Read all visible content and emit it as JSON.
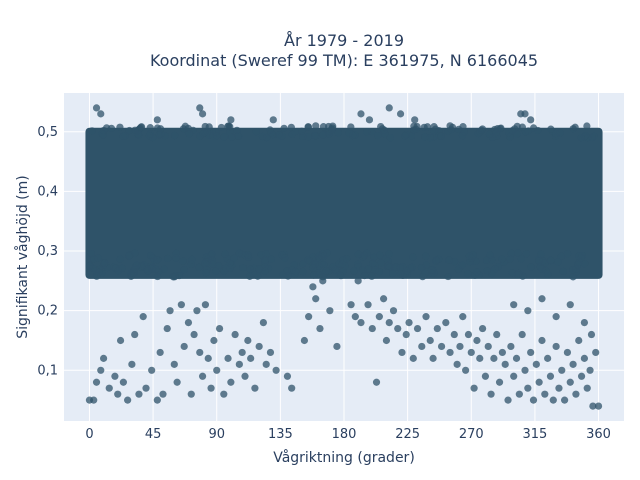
{
  "chart_data": {
    "type": "scatter",
    "title": "År 1979 - 2019",
    "subtitle": "Koordinat (Sweref 99 TM): E 361975, N 6166045",
    "xlabel": "Vågriktning (grader)",
    "ylabel": "Signifikant våghöjd (m)",
    "xlim": [
      -18,
      378
    ],
    "ylim": [
      0.015,
      0.565
    ],
    "x_ticks": [
      0,
      45,
      90,
      135,
      180,
      225,
      270,
      315,
      360
    ],
    "x_tick_labels": [
      "0",
      "45",
      "90",
      "135",
      "180",
      "225",
      "270",
      "315",
      "360"
    ],
    "y_ticks": [
      0.1,
      0.2,
      0.3,
      0.4,
      0.5
    ],
    "y_tick_labels": [
      "0,1",
      "0,2",
      "0,3",
      "0,4",
      "0,5"
    ],
    "grid": true,
    "colors": {
      "marker": "#2f5369",
      "background": "#e5ecf6",
      "grid": "#ffffff"
    },
    "dense_band": {
      "x_range": [
        0,
        360
      ],
      "y_range": [
        0.26,
        0.5
      ]
    },
    "points": [
      [
        0,
        0.05
      ],
      [
        3,
        0.05
      ],
      [
        5,
        0.08
      ],
      [
        8,
        0.1
      ],
      [
        10,
        0.12
      ],
      [
        14,
        0.07
      ],
      [
        18,
        0.09
      ],
      [
        20,
        0.06
      ],
      [
        22,
        0.15
      ],
      [
        24,
        0.08
      ],
      [
        27,
        0.05
      ],
      [
        30,
        0.11
      ],
      [
        32,
        0.16
      ],
      [
        35,
        0.06
      ],
      [
        38,
        0.19
      ],
      [
        40,
        0.07
      ],
      [
        44,
        0.1
      ],
      [
        48,
        0.05
      ],
      [
        50,
        0.13
      ],
      [
        52,
        0.06
      ],
      [
        55,
        0.17
      ],
      [
        57,
        0.2
      ],
      [
        60,
        0.11
      ],
      [
        62,
        0.08
      ],
      [
        65,
        0.21
      ],
      [
        67,
        0.14
      ],
      [
        70,
        0.18
      ],
      [
        72,
        0.06
      ],
      [
        74,
        0.16
      ],
      [
        76,
        0.2
      ],
      [
        78,
        0.13
      ],
      [
        80,
        0.09
      ],
      [
        82,
        0.21
      ],
      [
        84,
        0.12
      ],
      [
        86,
        0.07
      ],
      [
        88,
        0.15
      ],
      [
        90,
        0.1
      ],
      [
        92,
        0.17
      ],
      [
        95,
        0.06
      ],
      [
        98,
        0.12
      ],
      [
        100,
        0.08
      ],
      [
        103,
        0.16
      ],
      [
        106,
        0.11
      ],
      [
        108,
        0.13
      ],
      [
        110,
        0.09
      ],
      [
        112,
        0.15
      ],
      [
        114,
        0.12
      ],
      [
        117,
        0.07
      ],
      [
        120,
        0.14
      ],
      [
        123,
        0.18
      ],
      [
        125,
        0.11
      ],
      [
        128,
        0.13
      ],
      [
        132,
        0.1
      ],
      [
        140,
        0.09
      ],
      [
        143,
        0.07
      ],
      [
        152,
        0.15
      ],
      [
        155,
        0.19
      ],
      [
        158,
        0.24
      ],
      [
        160,
        0.22
      ],
      [
        163,
        0.17
      ],
      [
        165,
        0.25
      ],
      [
        170,
        0.2
      ],
      [
        175,
        0.14
      ],
      [
        185,
        0.21
      ],
      [
        188,
        0.19
      ],
      [
        190,
        0.25
      ],
      [
        192,
        0.18
      ],
      [
        197,
        0.21
      ],
      [
        200,
        0.17
      ],
      [
        203,
        0.08
      ],
      [
        205,
        0.19
      ],
      [
        208,
        0.22
      ],
      [
        210,
        0.15
      ],
      [
        212,
        0.18
      ],
      [
        215,
        0.2
      ],
      [
        218,
        0.17
      ],
      [
        221,
        0.13
      ],
      [
        224,
        0.16
      ],
      [
        226,
        0.18
      ],
      [
        229,
        0.12
      ],
      [
        232,
        0.17
      ],
      [
        235,
        0.14
      ],
      [
        238,
        0.19
      ],
      [
        241,
        0.15
      ],
      [
        243,
        0.12
      ],
      [
        246,
        0.17
      ],
      [
        249,
        0.14
      ],
      [
        252,
        0.18
      ],
      [
        255,
        0.13
      ],
      [
        258,
        0.16
      ],
      [
        260,
        0.11
      ],
      [
        262,
        0.14
      ],
      [
        264,
        0.19
      ],
      [
        266,
        0.1
      ],
      [
        268,
        0.16
      ],
      [
        270,
        0.13
      ],
      [
        272,
        0.07
      ],
      [
        274,
        0.15
      ],
      [
        276,
        0.12
      ],
      [
        278,
        0.17
      ],
      [
        280,
        0.09
      ],
      [
        282,
        0.14
      ],
      [
        284,
        0.06
      ],
      [
        286,
        0.12
      ],
      [
        288,
        0.16
      ],
      [
        290,
        0.08
      ],
      [
        292,
        0.13
      ],
      [
        294,
        0.11
      ],
      [
        296,
        0.05
      ],
      [
        298,
        0.14
      ],
      [
        300,
        0.09
      ],
      [
        302,
        0.12
      ],
      [
        304,
        0.06
      ],
      [
        306,
        0.16
      ],
      [
        308,
        0.1
      ],
      [
        310,
        0.07
      ],
      [
        312,
        0.13
      ],
      [
        314,
        0.05
      ],
      [
        316,
        0.11
      ],
      [
        318,
        0.08
      ],
      [
        320,
        0.15
      ],
      [
        322,
        0.06
      ],
      [
        324,
        0.12
      ],
      [
        326,
        0.09
      ],
      [
        328,
        0.05
      ],
      [
        330,
        0.14
      ],
      [
        332,
        0.07
      ],
      [
        334,
        0.1
      ],
      [
        336,
        0.05
      ],
      [
        338,
        0.13
      ],
      [
        340,
        0.08
      ],
      [
        342,
        0.11
      ],
      [
        344,
        0.06
      ],
      [
        346,
        0.15
      ],
      [
        348,
        0.09
      ],
      [
        350,
        0.12
      ],
      [
        352,
        0.07
      ],
      [
        354,
        0.1
      ],
      [
        356,
        0.04
      ],
      [
        358,
        0.13
      ],
      [
        360,
        0.04
      ],
      [
        300,
        0.21
      ],
      [
        310,
        0.2
      ],
      [
        320,
        0.22
      ],
      [
        330,
        0.19
      ],
      [
        340,
        0.21
      ],
      [
        350,
        0.18
      ],
      [
        355,
        0.16
      ],
      [
        5,
        0.54
      ],
      [
        8,
        0.53
      ],
      [
        48,
        0.52
      ],
      [
        78,
        0.54
      ],
      [
        80,
        0.53
      ],
      [
        192,
        0.53
      ],
      [
        198,
        0.52
      ],
      [
        212,
        0.54
      ],
      [
        220,
        0.53
      ],
      [
        305,
        0.53
      ],
      [
        308,
        0.53
      ],
      [
        312,
        0.52
      ],
      [
        230,
        0.52
      ],
      [
        255,
        0.51
      ],
      [
        130,
        0.52
      ],
      [
        160,
        0.51
      ],
      [
        100,
        0.52
      ]
    ]
  }
}
